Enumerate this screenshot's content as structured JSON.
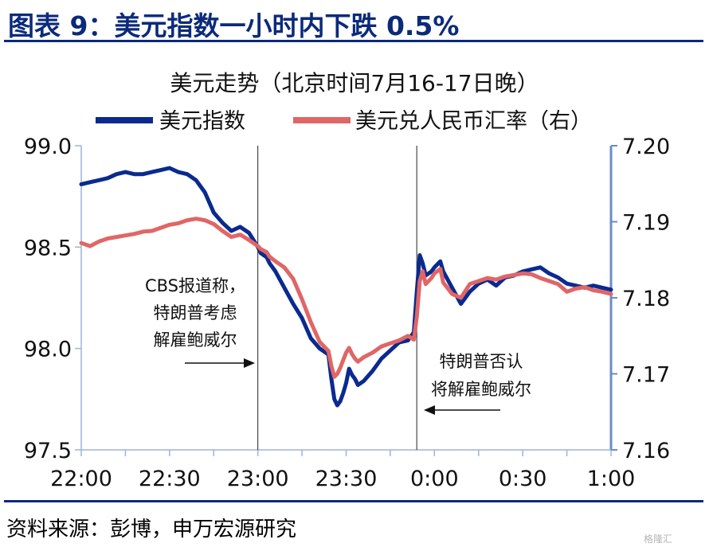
{
  "figure": {
    "title": "图表 9：美元指数一小时内下跌 0.5%",
    "source": "资料来源：彭博，申万宏源研究",
    "watermark": "格隆汇"
  },
  "colors": {
    "accent": "#0b2a7a",
    "usd_index": "#0a2a8f",
    "usdcny": "#e06666",
    "axis_right": "#6a8cc7",
    "axis_left": "#9db4da"
  },
  "chart_data": {
    "type": "line",
    "title": "美元走势（北京时间7月16-17日晚）",
    "x_ticks": [
      "22:00",
      "22:30",
      "23:00",
      "23:30",
      "0:00",
      "0:30",
      "1:00"
    ],
    "x_range_minutes": [
      0,
      180
    ],
    "y_left": {
      "range": [
        97.5,
        99.0
      ],
      "ticks": [
        "99.0",
        "98.5",
        "98.0",
        "97.5"
      ]
    },
    "y_right": {
      "range": [
        7.16,
        7.2
      ],
      "ticks": [
        "7.20",
        "7.19",
        "7.18",
        "7.17",
        "7.16"
      ]
    },
    "legend_position": "top",
    "series": [
      {
        "name": "美元指数",
        "axis": "left",
        "x": [
          0,
          3,
          6,
          9,
          12,
          15,
          18,
          21,
          24,
          27,
          30,
          33,
          36,
          39,
          42,
          45,
          48,
          51,
          54,
          57,
          60,
          61,
          63,
          64,
          66,
          69,
          72,
          75,
          78,
          81,
          84,
          85,
          86,
          87,
          88,
          89,
          90,
          91,
          92,
          93,
          94,
          96,
          99,
          102,
          105,
          108,
          111,
          113,
          114,
          115,
          116,
          117,
          119,
          120,
          122,
          123,
          126,
          129,
          132,
          135,
          138,
          141,
          144,
          147,
          150,
          153,
          156,
          159,
          162,
          165,
          168,
          171,
          174,
          177,
          180
        ],
        "values": [
          98.81,
          98.82,
          98.83,
          98.84,
          98.86,
          98.87,
          98.86,
          98.86,
          98.87,
          98.88,
          98.89,
          98.87,
          98.86,
          98.83,
          98.77,
          98.67,
          98.62,
          98.58,
          98.6,
          98.57,
          98.5,
          98.47,
          98.45,
          98.42,
          98.38,
          98.3,
          98.22,
          98.15,
          98.05,
          98.0,
          97.97,
          97.85,
          97.75,
          97.72,
          97.74,
          97.78,
          97.83,
          97.9,
          97.87,
          97.85,
          97.82,
          97.84,
          97.89,
          97.95,
          97.99,
          98.03,
          98.04,
          98.08,
          98.28,
          98.46,
          98.42,
          98.36,
          98.38,
          98.4,
          98.43,
          98.38,
          98.3,
          98.22,
          98.28,
          98.32,
          98.34,
          98.31,
          98.35,
          98.36,
          98.38,
          98.39,
          98.4,
          98.37,
          98.35,
          98.32,
          98.31,
          98.3,
          98.31,
          98.3,
          98.29
        ]
      },
      {
        "name": "美元兑人民币汇率（右）",
        "axis": "right",
        "x": [
          0,
          3,
          6,
          9,
          12,
          15,
          18,
          21,
          24,
          27,
          30,
          33,
          36,
          39,
          42,
          45,
          48,
          51,
          54,
          57,
          60,
          61,
          63,
          64,
          66,
          69,
          72,
          75,
          78,
          81,
          84,
          85,
          86,
          87,
          88,
          89,
          90,
          91,
          92,
          93,
          94,
          96,
          99,
          102,
          105,
          108,
          111,
          113,
          114,
          115,
          116,
          117,
          119,
          120,
          122,
          123,
          126,
          129,
          132,
          135,
          138,
          141,
          144,
          147,
          150,
          153,
          156,
          159,
          162,
          165,
          168,
          171,
          174,
          177,
          180
        ],
        "values": [
          7.1872,
          7.1868,
          7.1874,
          7.1878,
          7.188,
          7.1882,
          7.1884,
          7.1887,
          7.1888,
          7.1892,
          7.1896,
          7.1898,
          7.1902,
          7.1904,
          7.1902,
          7.1897,
          7.1888,
          7.188,
          7.1883,
          7.1876,
          7.1868,
          7.1864,
          7.186,
          7.1854,
          7.1848,
          7.184,
          7.1825,
          7.1798,
          7.1768,
          7.1742,
          7.173,
          7.171,
          7.1696,
          7.17,
          7.1708,
          7.1718,
          7.1728,
          7.1734,
          7.1726,
          7.172,
          7.1716,
          7.1722,
          7.1728,
          7.1736,
          7.174,
          7.1744,
          7.175,
          7.1745,
          7.1775,
          7.1822,
          7.1835,
          7.1818,
          7.1826,
          7.1832,
          7.1838,
          7.182,
          7.1805,
          7.18,
          7.1818,
          7.1822,
          7.1826,
          7.1824,
          7.1828,
          7.183,
          7.1832,
          7.1831,
          7.1826,
          7.1822,
          7.1818,
          7.1808,
          7.1812,
          7.1814,
          7.181,
          7.1808,
          7.1805
        ]
      }
    ],
    "vlines_minutes": [
      60,
      114
    ],
    "annotations": [
      {
        "lines": [
          "CBS报道称，",
          "特朗普考虑",
          "解雇鲍威尔"
        ],
        "arrow": "right"
      },
      {
        "lines": [
          "特朗普否认",
          "将解雇鲍威尔"
        ],
        "arrow": "left"
      }
    ]
  }
}
